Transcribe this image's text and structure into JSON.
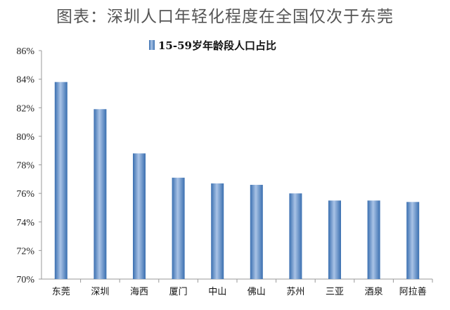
{
  "title": "图表：深圳人口年轻化程度在全国仅次于东莞",
  "chart_data": {
    "type": "bar",
    "title": "图表：深圳人口年轻化程度在全国仅次于东莞",
    "categories": [
      "东莞",
      "深圳",
      "海西",
      "厦门",
      "中山",
      "佛山",
      "苏州",
      "三亚",
      "酒泉",
      "阿拉善"
    ],
    "series": [
      {
        "name": "15-59岁年龄段人口占比",
        "values": [
          83.8,
          81.9,
          78.8,
          77.1,
          76.7,
          76.6,
          76.0,
          75.5,
          75.5,
          75.4
        ]
      }
    ],
    "ylim": [
      70,
      86
    ],
    "yticks": [
      "70%",
      "72%",
      "74%",
      "76%",
      "78%",
      "80%",
      "82%",
      "84%",
      "86%"
    ],
    "xlabel": "",
    "ylabel": "",
    "legend": "top-center",
    "grid": false,
    "color": "#4f81bd"
  }
}
